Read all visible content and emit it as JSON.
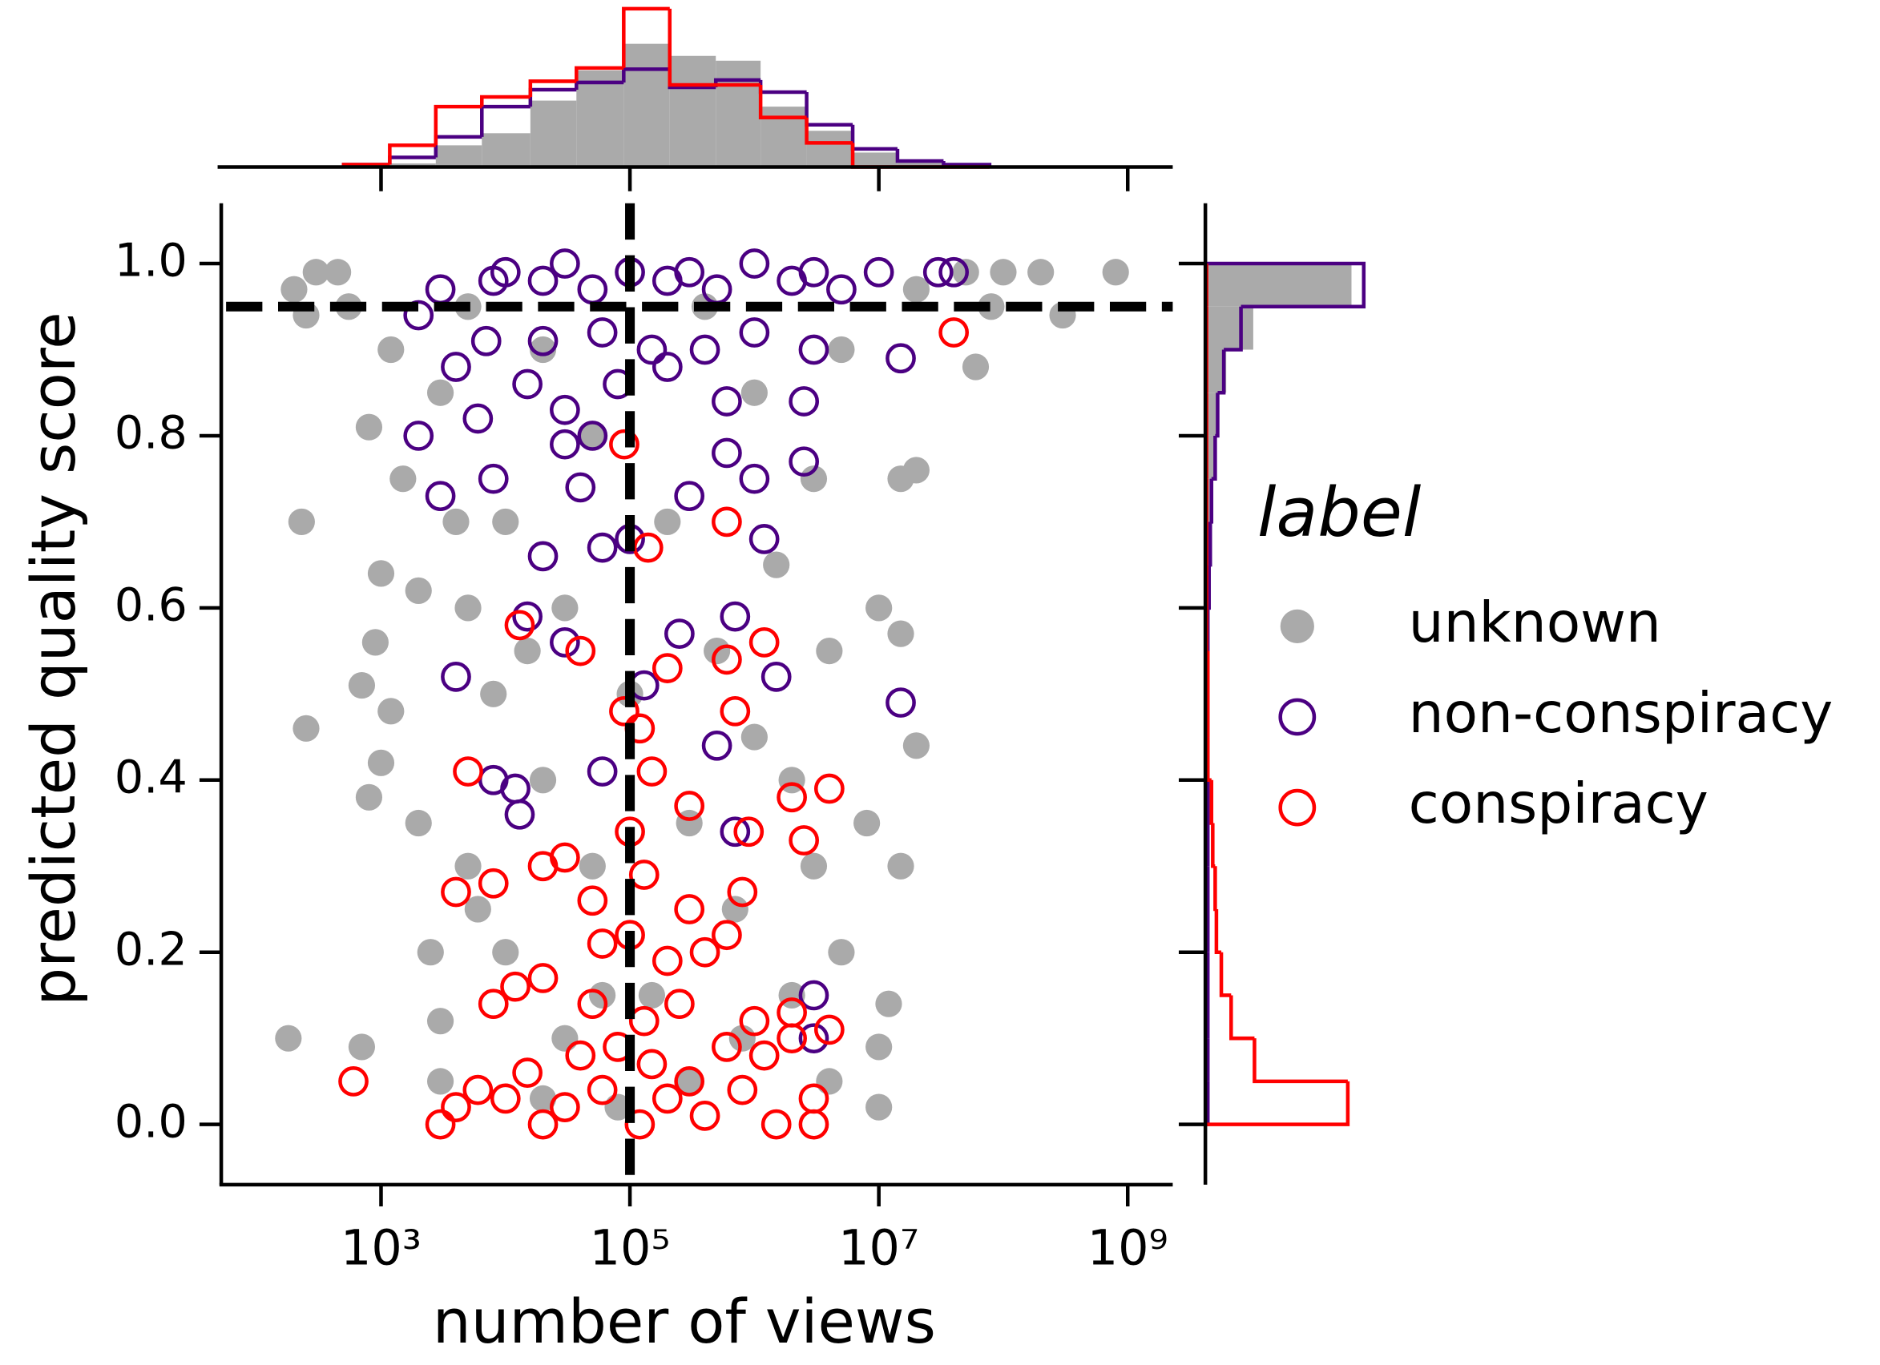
{
  "chart_data": {
    "type": "scatter",
    "xlabel": "number of views",
    "ylabel": "predicted quality score",
    "xscale": "log",
    "xlim": [
      52,
      2300000000
    ],
    "ylim": [
      -0.07,
      1.07
    ],
    "xticks": [
      {
        "value": 1000,
        "label": "10³"
      },
      {
        "value": 100000,
        "label": "10⁵"
      },
      {
        "value": 10000000,
        "label": "10⁷"
      },
      {
        "value": 1000000000,
        "label": "10⁹"
      }
    ],
    "yticks": [
      {
        "value": 0,
        "label": "0.0"
      },
      0.2,
      0.4,
      0.6,
      0.8,
      {
        "value": 1,
        "label": "1.0"
      }
    ],
    "vline": 100000,
    "hline": 0.95,
    "legend_title": "label",
    "legend": "right",
    "series": [
      {
        "name": "unknown",
        "color": "#aaaaaa",
        "marker": "filled",
        "x": [
          300,
          200,
          450,
          250,
          550,
          230,
          250,
          180,
          700,
          800,
          700,
          1000,
          1200,
          900,
          1000,
          800,
          1200,
          1500,
          2000,
          2500,
          3000,
          3000,
          2000,
          3000,
          5000,
          5000,
          5000,
          8000,
          10000,
          10000,
          20000,
          20000,
          30000,
          30000,
          50000,
          50000,
          80000,
          100000,
          150000,
          200000,
          300000,
          400000,
          500000,
          700000,
          1000000,
          1000000,
          1500000,
          2000000,
          2000000,
          3000000,
          3000000,
          4000000,
          5000000,
          5000000,
          8000000,
          10000000,
          15000000,
          15000000,
          10000000,
          12000000,
          10000000,
          20000000,
          20000000,
          20000000,
          50000000,
          60000000,
          80000000,
          100000000,
          200000000,
          300000000,
          800000000,
          15000000,
          4000000,
          800000,
          300000,
          20000,
          6000,
          4000,
          15000,
          60000
        ],
        "y": [
          0.99,
          0.97,
          0.99,
          0.94,
          0.95,
          0.7,
          0.46,
          0.1,
          0.09,
          0.38,
          0.51,
          0.42,
          0.48,
          0.56,
          0.64,
          0.81,
          0.9,
          0.75,
          0.35,
          0.2,
          0.05,
          0.12,
          0.62,
          0.85,
          0.3,
          0.6,
          0.95,
          0.5,
          0.2,
          0.7,
          0.4,
          0.9,
          0.1,
          0.6,
          0.3,
          0.8,
          0.02,
          0.5,
          0.15,
          0.7,
          0.35,
          0.95,
          0.55,
          0.25,
          0.45,
          0.85,
          0.65,
          0.15,
          0.4,
          0.3,
          0.75,
          0.55,
          0.9,
          0.2,
          0.35,
          0.6,
          0.75,
          0.3,
          0.02,
          0.14,
          0.09,
          0.44,
          0.76,
          0.97,
          0.99,
          0.88,
          0.95,
          0.99,
          0.99,
          0.94,
          0.99,
          0.57,
          0.05,
          0.1,
          0.05,
          0.03,
          0.25,
          0.7,
          0.55,
          0.15
        ]
      },
      {
        "name": "non-conspiracy",
        "color": "#4b0082",
        "marker": "hollow",
        "x": [
          10000,
          30000,
          100000,
          300000,
          1000000,
          3000000,
          10000000,
          30000000,
          40000000,
          3000,
          8000,
          20000,
          50000,
          200000,
          500000,
          2000000,
          5000000,
          2000,
          4000,
          7000,
          20000,
          60000,
          150000,
          400000,
          1000000,
          3000000,
          15000000,
          15000,
          30000,
          80000,
          200000,
          600000,
          2500000,
          2000,
          6000,
          30000,
          50000,
          3000,
          8000,
          40000,
          300000,
          600000,
          1000000,
          2500000,
          20000,
          60000,
          100000,
          1200000,
          15000,
          30000,
          250000,
          700000,
          4000,
          1500000,
          15000000,
          130000,
          8000,
          13000,
          60000,
          500000,
          700000,
          3000000,
          3000000,
          12000
        ],
        "y": [
          0.99,
          1.0,
          0.99,
          0.99,
          1.0,
          0.99,
          0.99,
          0.99,
          0.99,
          0.97,
          0.98,
          0.98,
          0.97,
          0.98,
          0.97,
          0.98,
          0.97,
          0.94,
          0.88,
          0.91,
          0.91,
          0.92,
          0.9,
          0.9,
          0.92,
          0.9,
          0.89,
          0.86,
          0.83,
          0.86,
          0.88,
          0.84,
          0.84,
          0.8,
          0.82,
          0.79,
          0.8,
          0.73,
          0.75,
          0.74,
          0.73,
          0.78,
          0.75,
          0.77,
          0.66,
          0.67,
          0.68,
          0.68,
          0.59,
          0.56,
          0.57,
          0.59,
          0.52,
          0.52,
          0.49,
          0.51,
          0.4,
          0.36,
          0.41,
          0.44,
          0.34,
          0.15,
          0.1,
          0.39
        ]
      },
      {
        "name": "conspiracy",
        "color": "#ff0000",
        "marker": "hollow",
        "x": [
          600,
          3000,
          4000,
          6000,
          10000,
          20000,
          30000,
          60000,
          120000,
          200000,
          400000,
          800000,
          1500000,
          3000000,
          3000000,
          15000,
          40000,
          80000,
          150000,
          300000,
          600000,
          1200000,
          2000000,
          4000000,
          8000,
          12000,
          20000,
          50000,
          130000,
          250000,
          1000000,
          2000000,
          60000,
          100000,
          200000,
          400000,
          600000,
          4000,
          8000,
          20000,
          30000,
          50000,
          130000,
          300000,
          800000,
          2500000,
          5000,
          100000,
          300000,
          900000,
          2000000,
          4000000,
          13000,
          40000,
          90000,
          120000,
          150000,
          200000,
          600000,
          700000,
          1200000,
          140000,
          600000,
          90000,
          40000000
        ],
        "y": [
          0.05,
          0.0,
          0.02,
          0.04,
          0.03,
          0.0,
          0.02,
          0.04,
          0.0,
          0.03,
          0.01,
          0.04,
          0.0,
          0.03,
          0.0,
          0.06,
          0.08,
          0.09,
          0.07,
          0.05,
          0.09,
          0.08,
          0.1,
          0.11,
          0.14,
          0.16,
          0.17,
          0.14,
          0.12,
          0.14,
          0.12,
          0.13,
          0.21,
          0.22,
          0.19,
          0.2,
          0.22,
          0.27,
          0.28,
          0.3,
          0.31,
          0.26,
          0.29,
          0.25,
          0.27,
          0.33,
          0.41,
          0.34,
          0.37,
          0.34,
          0.38,
          0.39,
          0.58,
          0.55,
          0.48,
          0.46,
          0.41,
          0.53,
          0.54,
          0.48,
          0.56,
          0.67,
          0.7,
          0.79,
          0.92
        ]
      }
    ],
    "top_histogram": {
      "type": "histogram",
      "bins": [
        501,
        1175,
        2754,
        6457,
        15849,
        37154,
        89125,
        208930,
        489779,
        1122018,
        2630268,
        6165950,
        14125375,
        33113112,
        77624712
      ],
      "series": [
        {
          "color": "#aaaaaa",
          "style": "filled",
          "values": [
            1,
            3,
            18,
            28,
            55,
            80,
            102,
            92,
            88,
            50,
            30,
            12,
            4,
            2
          ]
        },
        {
          "color": "#4b0082",
          "style": "step",
          "values": [
            2,
            8,
            25,
            50,
            64,
            70,
            81,
            66,
            72,
            62,
            35,
            15,
            5,
            2
          ]
        },
        {
          "color": "#ff0000",
          "style": "step",
          "values": [
            2,
            18,
            50,
            58,
            71,
            82,
            131,
            68,
            68,
            41,
            20,
            0,
            0,
            0
          ]
        }
      ]
    },
    "right_histogram": {
      "type": "histogram",
      "bins": [
        0,
        0.05,
        0.1,
        0.15,
        0.2,
        0.25,
        0.3,
        0.35,
        0.4,
        0.45,
        0.5,
        0.55,
        0.6,
        0.65,
        0.7,
        0.75,
        0.8,
        0.85,
        0.9,
        0.95,
        1.0
      ],
      "series": [
        {
          "color": "#aaaaaa",
          "style": "filled",
          "values": [
            1,
            1,
            1,
            1,
            1,
            1,
            1,
            1,
            1,
            1,
            1,
            1,
            2,
            3,
            4,
            7,
            10,
            16,
            38,
            118
          ]
        },
        {
          "color": "#4b0082",
          "style": "step",
          "values": [
            1,
            1,
            1,
            1,
            1,
            1,
            1,
            1,
            1,
            1,
            1,
            1,
            2,
            3,
            4,
            7,
            9,
            14,
            28,
            128
          ]
        },
        {
          "color": "#ff0000",
          "style": "step",
          "values": [
            115,
            39,
            20,
            12,
            8,
            7,
            5,
            4,
            1,
            1,
            1,
            0,
            0,
            0,
            0,
            0,
            0,
            0,
            0,
            0
          ]
        }
      ]
    }
  }
}
